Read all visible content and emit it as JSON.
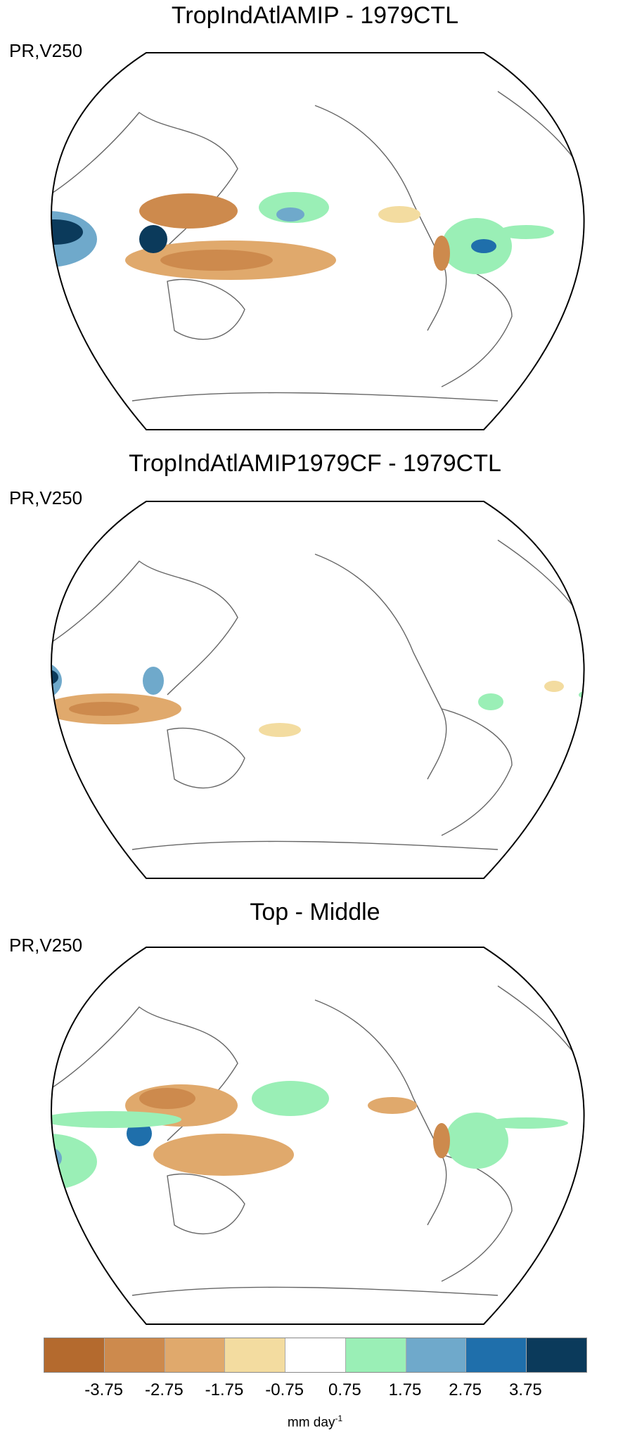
{
  "panels": [
    {
      "title": "TropIndAtlAMIP - 1979CTL",
      "var_label": "PR,V250"
    },
    {
      "title": "TropIndAtlAMIP1979CF - 1979CTL",
      "var_label": "PR,V250"
    },
    {
      "title": "Top - Middle",
      "var_label": "PR,V250"
    }
  ],
  "colorbar": {
    "colors": [
      "#b46a2e",
      "#cd8a4d",
      "#e0a96c",
      "#f3dca0",
      "#ffffff",
      "#9aefb6",
      "#6fa9cb",
      "#1f6fab",
      "#0b3a5b"
    ],
    "ticks": [
      "-3.75",
      "-2.75",
      "-1.75",
      "-0.75",
      "0.75",
      "1.75",
      "2.75",
      "3.75"
    ],
    "units": "mm day",
    "units_exp": "-1"
  }
}
